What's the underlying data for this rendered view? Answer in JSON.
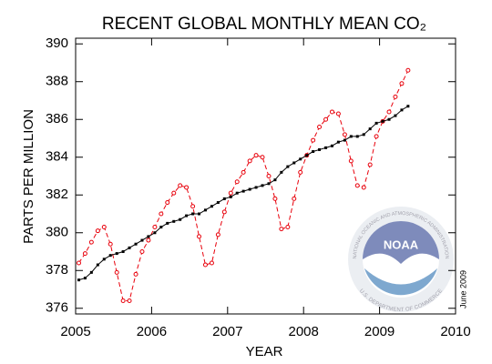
{
  "chart_data": {
    "type": "line",
    "title": "RECENT GLOBAL MONTHLY MEAN CO₂",
    "x_label": "YEAR",
    "y_label": "PARTS PER MILLION",
    "date_note": "June 2009",
    "logo": {
      "name": "NOAA",
      "top_text": "NATIONAL OCEANIC AND ATMOSPHERIC ADMINISTRATION",
      "bottom_text": "U.S. DEPARTMENT OF COMMERCE"
    },
    "xlim": [
      2005,
      2010
    ],
    "ylim": [
      375.7,
      390.3
    ],
    "xticks": [
      2005,
      2006,
      2007,
      2008,
      2009,
      2010
    ],
    "yticks": [
      376,
      378,
      380,
      382,
      384,
      386,
      388,
      390
    ],
    "x": [
      2005.042,
      2005.125,
      2005.208,
      2005.292,
      2005.375,
      2005.458,
      2005.542,
      2005.625,
      2005.708,
      2005.792,
      2005.875,
      2005.958,
      2006.042,
      2006.125,
      2006.208,
      2006.292,
      2006.375,
      2006.458,
      2006.542,
      2006.625,
      2006.708,
      2006.792,
      2006.875,
      2006.958,
      2007.042,
      2007.125,
      2007.208,
      2007.292,
      2007.375,
      2007.458,
      2007.542,
      2007.625,
      2007.708,
      2007.792,
      2007.875,
      2007.958,
      2008.042,
      2008.125,
      2008.208,
      2008.292,
      2008.375,
      2008.458,
      2008.542,
      2008.625,
      2008.708,
      2008.792,
      2008.875,
      2008.958,
      2009.042,
      2009.125,
      2009.208,
      2009.292,
      2009.375
    ],
    "series": [
      {
        "color": "#e8000b",
        "style": "dashed",
        "marker": "circle",
        "values": [
          378.4,
          378.9,
          379.5,
          380.1,
          380.3,
          379.4,
          377.9,
          376.4,
          376.4,
          377.8,
          379.0,
          379.6,
          380.3,
          381.0,
          381.6,
          382.1,
          382.5,
          382.4,
          381.4,
          379.8,
          378.3,
          378.4,
          379.9,
          381.1,
          382.1,
          382.7,
          383.2,
          383.8,
          384.1,
          384.0,
          383.0,
          381.8,
          380.2,
          380.3,
          381.8,
          383.2,
          384.1,
          384.9,
          385.6,
          386.0,
          386.4,
          386.3,
          385.2,
          383.8,
          382.5,
          382.4,
          383.6,
          385.1,
          385.9,
          386.4,
          387.2,
          387.9,
          388.6
        ]
      },
      {
        "color": "#000000",
        "style": "solid",
        "marker": "square",
        "values": [
          377.5,
          377.6,
          377.9,
          378.3,
          378.6,
          378.8,
          378.9,
          379.0,
          379.2,
          379.4,
          379.6,
          379.8,
          380.0,
          380.3,
          380.5,
          380.6,
          380.7,
          380.9,
          381.0,
          381.0,
          381.2,
          381.4,
          381.6,
          381.8,
          381.9,
          382.1,
          382.2,
          382.3,
          382.4,
          382.5,
          382.6,
          382.8,
          383.2,
          383.5,
          383.7,
          383.9,
          384.1,
          384.3,
          384.4,
          384.5,
          384.6,
          384.8,
          384.9,
          385.1,
          385.1,
          385.2,
          385.5,
          385.8,
          385.9,
          386.0,
          386.2,
          386.5,
          386.7
        ]
      }
    ]
  }
}
